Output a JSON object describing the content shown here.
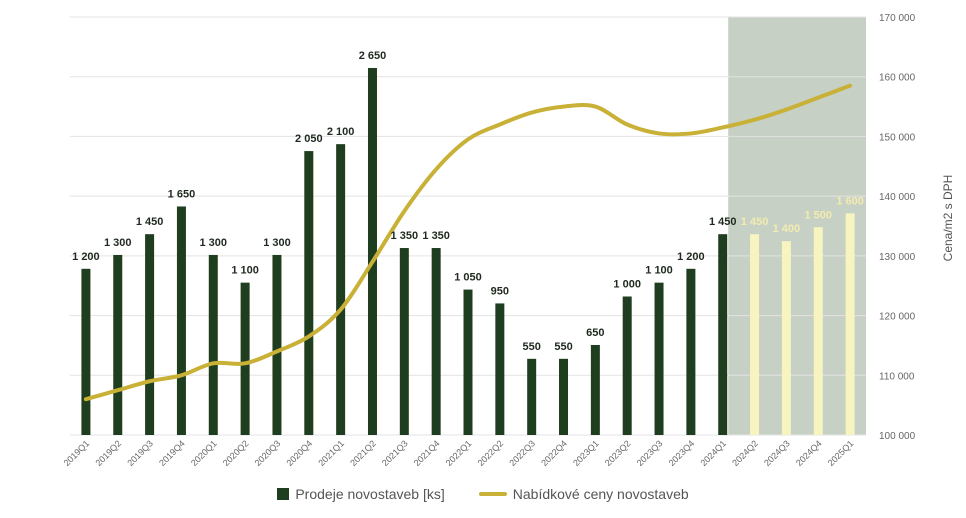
{
  "colors": {
    "bar_actual": "#1f3d1f",
    "bar_forecast": "#f7f4bf",
    "line": "#c8b136",
    "forecast_band": "#c7d0c5",
    "grid": "#e3e3e3",
    "axis_text": "#666666",
    "label_actual": "#1f2a1f",
    "label_forecast": "#f2ecb0"
  },
  "chart_data": {
    "type": "bar",
    "title": "",
    "xlabel": "",
    "ylabel": "",
    "y2label": "Cena/m2 s DPH",
    "y2lim": [
      100000,
      170000
    ],
    "y2ticks": [
      "100 000",
      "110 000",
      "120 000",
      "130 000",
      "140 000",
      "150 000",
      "160 000",
      "170 000"
    ],
    "grid": "horizontal",
    "legend_placement": "bottom",
    "forecast_region": [
      "2024Q1",
      "2025Q1"
    ],
    "categories": [
      "2019Q1",
      "2019Q2",
      "2019Q3",
      "2019Q4",
      "2020Q1",
      "2020Q2",
      "2020Q3",
      "2020Q4",
      "2021Q1",
      "2021Q2",
      "2021Q3",
      "2021Q4",
      "2022Q1",
      "2022Q2",
      "2022Q3",
      "2022Q4",
      "2023Q1",
      "2023Q2",
      "2023Q3",
      "2023Q4",
      "2024Q1",
      "2024Q2",
      "2024Q3",
      "2024Q4",
      "2025Q1"
    ],
    "series": [
      {
        "name": "Prodeje novostaveb [ks]",
        "type": "bar",
        "values": [
          1200,
          1300,
          1450,
          1650,
          1300,
          1100,
          1300,
          2050,
          2100,
          2650,
          1350,
          1350,
          1050,
          950,
          550,
          550,
          650,
          1000,
          1100,
          1200,
          1450,
          1450,
          1400,
          1500,
          1600
        ],
        "labels": [
          "1 200",
          "1 300",
          "1 450",
          "1 650",
          "1 300",
          "1 100",
          "1 300",
          "2 050",
          "2 100",
          "2 650",
          "1 350",
          "1 350",
          "1 050",
          "950",
          "550",
          "550",
          "650",
          "1 000",
          "1 100",
          "1 200",
          "1 450",
          "1 450",
          "1 400",
          "1 500",
          "1 600"
        ],
        "forecast_from_index": 21
      },
      {
        "name": "Nabídkové ceny novostaveb",
        "type": "line",
        "axis": "y2",
        "values": [
          106000,
          107500,
          109000,
          110000,
          112000,
          112000,
          114000,
          116500,
          121000,
          129000,
          137500,
          144500,
          149500,
          152000,
          154000,
          155000,
          155000,
          152000,
          150500,
          150500,
          151500,
          152800,
          154500,
          156500,
          158500
        ]
      }
    ]
  }
}
